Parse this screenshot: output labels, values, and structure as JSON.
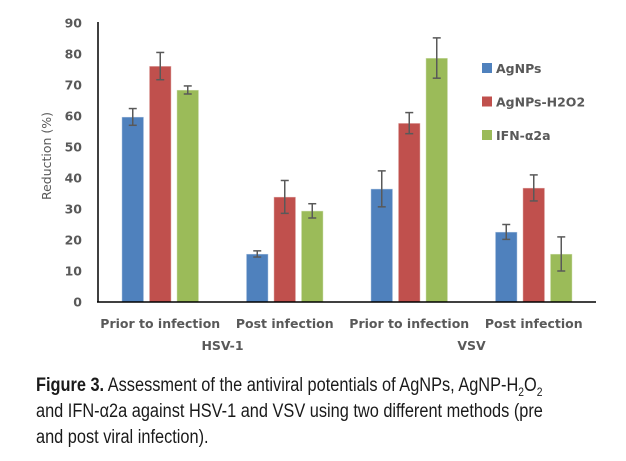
{
  "chart_data": {
    "type": "bar",
    "title": "",
    "xlabel": "",
    "ylabel": "Reduction (%)",
    "ylim": [
      0,
      90
    ],
    "yticks": [
      0,
      10,
      20,
      30,
      40,
      50,
      60,
      70,
      80,
      90
    ],
    "grid": false,
    "legend_position": "right",
    "categories": [
      "Prior to infection",
      "Post infection",
      "Prior to infection",
      "Post infection"
    ],
    "groups": [
      {
        "label": "HSV-1",
        "categories": [
          0,
          1
        ]
      },
      {
        "label": "VSV",
        "categories": [
          2,
          3
        ]
      }
    ],
    "series": [
      {
        "name": "AgNPs",
        "color": "#4F81BD",
        "values": [
          59.7,
          15.5,
          36.5,
          22.6
        ],
        "errors": [
          2.7,
          1.0,
          5.8,
          2.4
        ]
      },
      {
        "name": "AgNPs-H2O2",
        "color": "#C0504D",
        "values": [
          76.1,
          33.9,
          57.7,
          36.8
        ],
        "errors": [
          4.4,
          5.3,
          3.4,
          4.2
        ]
      },
      {
        "name": "IFN-α2a",
        "color": "#9BBB59",
        "values": [
          68.4,
          29.4,
          78.7,
          15.5
        ],
        "errors": [
          1.3,
          2.3,
          6.5,
          5.5
        ]
      }
    ]
  },
  "caption": {
    "label": "Figure 3.",
    "text_part1": " Assessment of the antiviral potentials of AgNPs, AgNP-H",
    "sub1": "2",
    "text_part2": "O",
    "sub2": "2",
    "text_part3": " and IFN-α2a against HSV-1 and VSV using two different methods (pre and post viral infection)."
  }
}
